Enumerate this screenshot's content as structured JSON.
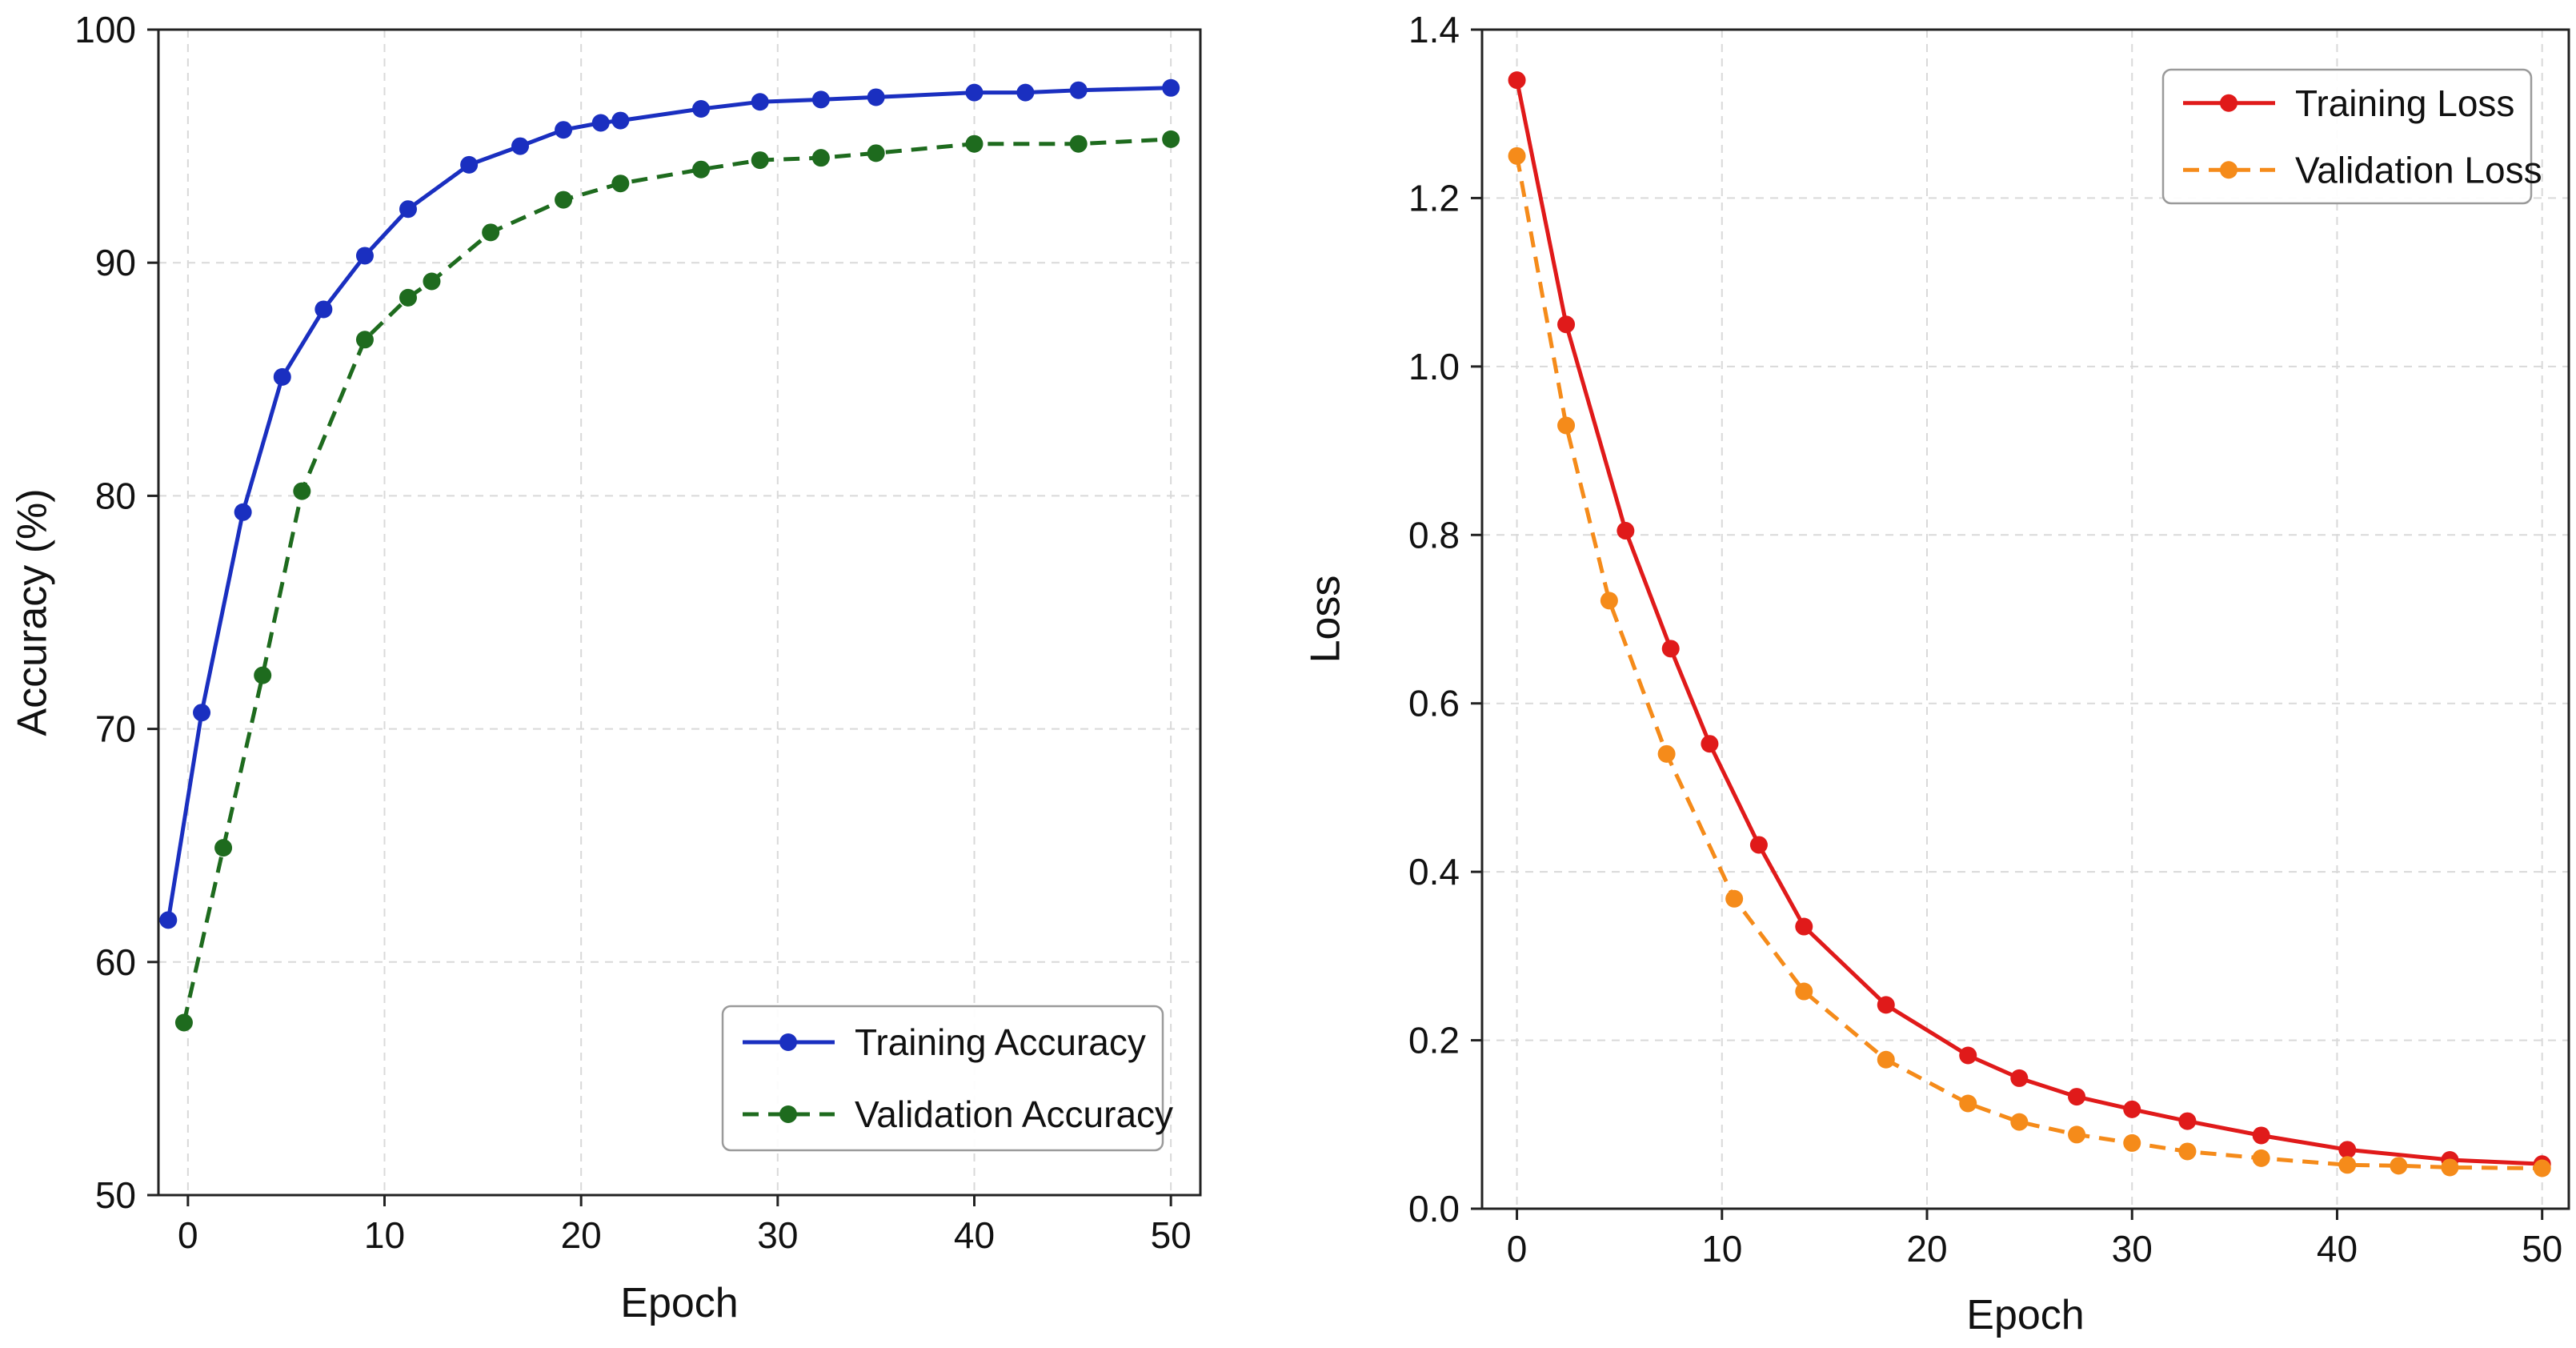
{
  "chart_data": [
    {
      "type": "line",
      "xlabel": "Epoch",
      "ylabel": "Accuracy (%)",
      "xlim": [
        -1.5,
        51.5
      ],
      "ylim": [
        50,
        100
      ],
      "xticks": [
        0,
        10,
        20,
        30,
        40,
        50
      ],
      "yticks": [
        50,
        60,
        70,
        80,
        90,
        100
      ],
      "grid": true,
      "legend_position": "lower-right",
      "series": [
        {
          "name": "Training Accuracy",
          "color": "#1a2fc0",
          "line_style": "solid",
          "marker": "circle",
          "x": [
            -1,
            0.7,
            2.8,
            4.8,
            6.9,
            9.0,
            11.2,
            14.3,
            16.9,
            19.1,
            21.0,
            22.0,
            26.1,
            29.1,
            32.2,
            35.0,
            40.0,
            42.6,
            45.3,
            50.0
          ],
          "values": [
            61.8,
            70.7,
            79.3,
            85.1,
            88.0,
            90.3,
            92.3,
            94.2,
            95.0,
            95.7,
            96.0,
            96.1,
            96.6,
            96.9,
            97.0,
            97.1,
            97.3,
            97.3,
            97.4,
            97.5
          ]
        },
        {
          "name": "Validation Accuracy",
          "color": "#1e6b1e",
          "line_style": "dashed",
          "marker": "circle",
          "x": [
            -0.2,
            1.8,
            3.8,
            5.8,
            9.0,
            11.2,
            12.4,
            15.4,
            19.1,
            22.0,
            26.1,
            29.1,
            32.2,
            35.0,
            40.0,
            45.3,
            50.0
          ],
          "values": [
            57.4,
            64.9,
            72.3,
            80.2,
            86.7,
            88.5,
            89.2,
            91.3,
            92.7,
            93.4,
            94.0,
            94.4,
            94.5,
            94.7,
            95.1,
            95.1,
            95.3
          ]
        }
      ]
    },
    {
      "type": "line",
      "xlabel": "Epoch",
      "ylabel": "Loss",
      "xlim": [
        -1.7,
        51.3
      ],
      "ylim": [
        0.0,
        1.4
      ],
      "xticks": [
        0,
        10,
        20,
        30,
        40,
        50
      ],
      "yticks": [
        0.0,
        0.2,
        0.4,
        0.6,
        0.8,
        1.0,
        1.2,
        1.4
      ],
      "tick_format": "one-decimal",
      "grid": true,
      "legend_position": "upper-right",
      "series": [
        {
          "name": "Training Loss",
          "color": "#e01a1a",
          "line_style": "solid",
          "marker": "circle",
          "x": [
            0,
            2.4,
            5.3,
            7.5,
            9.4,
            11.8,
            14.0,
            18.0,
            22.0,
            24.5,
            27.3,
            30.0,
            32.7,
            36.3,
            40.5,
            45.5,
            50.0
          ],
          "values": [
            1.34,
            1.05,
            0.805,
            0.665,
            0.552,
            0.432,
            0.335,
            0.242,
            0.182,
            0.155,
            0.133,
            0.118,
            0.104,
            0.087,
            0.07,
            0.058,
            0.053
          ]
        },
        {
          "name": "Validation Loss",
          "color": "#f58b1a",
          "line_style": "dashed",
          "marker": "circle",
          "x": [
            0,
            2.4,
            4.5,
            7.3,
            10.6,
            14.0,
            18.0,
            22.0,
            24.5,
            27.3,
            30.0,
            32.7,
            36.3,
            40.5,
            43.0,
            45.5,
            50.0
          ],
          "values": [
            1.25,
            0.93,
            0.722,
            0.54,
            0.368,
            0.258,
            0.177,
            0.125,
            0.103,
            0.088,
            0.078,
            0.068,
            0.06,
            0.052,
            0.051,
            0.049,
            0.048
          ]
        }
      ]
    }
  ]
}
